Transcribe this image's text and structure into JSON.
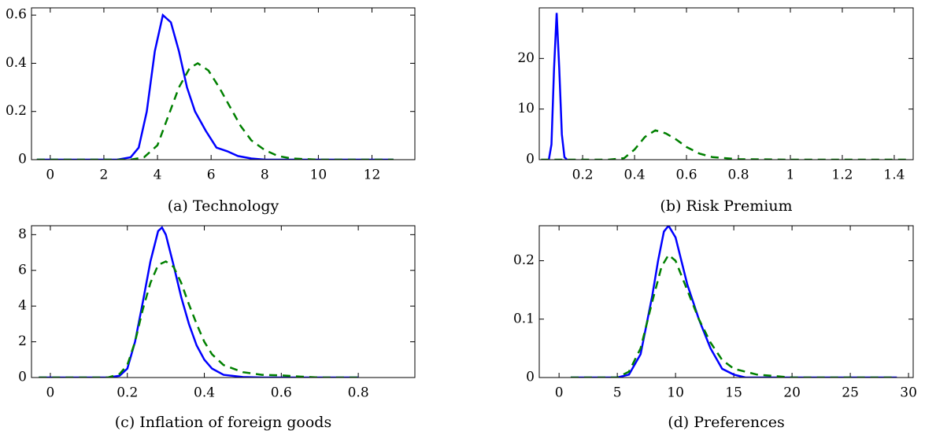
{
  "chart_data": [
    {
      "type": "line",
      "caption": "(a) Technology",
      "xlim": [
        -0.7,
        13.6
      ],
      "ylim": [
        0,
        0.63
      ],
      "xticks": [
        0,
        2,
        4,
        6,
        8,
        10,
        12
      ],
      "yticks": [
        0,
        0.2,
        0.4,
        0.6
      ],
      "series": [
        {
          "color": "#0000ff",
          "dashed": false,
          "x": [
            -0.5,
            2.5,
            3,
            3.3,
            3.6,
            3.9,
            4.2,
            4.5,
            4.8,
            5.1,
            5.4,
            5.8,
            6.2,
            6.6,
            7,
            7.5,
            8,
            12.8
          ],
          "values": [
            0,
            0,
            0.01,
            0.05,
            0.2,
            0.45,
            0.6,
            0.57,
            0.45,
            0.3,
            0.2,
            0.12,
            0.05,
            0.035,
            0.015,
            0.005,
            0,
            0
          ]
        },
        {
          "color": "#008000",
          "dashed": true,
          "x": [
            -0.5,
            3,
            3.5,
            4,
            4.4,
            4.8,
            5.2,
            5.5,
            5.9,
            6.3,
            6.7,
            7.1,
            7.5,
            8,
            8.5,
            9,
            10,
            12.8
          ],
          "values": [
            0,
            0,
            0.01,
            0.06,
            0.18,
            0.3,
            0.38,
            0.4,
            0.37,
            0.3,
            0.22,
            0.14,
            0.08,
            0.04,
            0.015,
            0.005,
            0,
            0
          ]
        }
      ]
    },
    {
      "type": "line",
      "caption": "(b) Risk Premium",
      "xlim": [
        0.033,
        1.473
      ],
      "ylim": [
        0,
        30
      ],
      "xticks": [
        0.2,
        0.4,
        0.6,
        0.8,
        1,
        1.2,
        1.4
      ],
      "yticks": [
        0,
        10,
        20
      ],
      "series": [
        {
          "color": "#0000ff",
          "dashed": false,
          "x": [
            0.07,
            0.08,
            0.09,
            0.1,
            0.11,
            0.12,
            0.13,
            0.14
          ],
          "values": [
            0,
            3,
            18,
            29,
            18,
            5,
            0.5,
            0
          ]
        },
        {
          "color": "#008000",
          "dashed": true,
          "x": [
            0.04,
            0.3,
            0.36,
            0.4,
            0.44,
            0.48,
            0.52,
            0.56,
            0.6,
            0.65,
            0.7,
            0.8,
            1,
            1.45
          ],
          "values": [
            0,
            0,
            0.3,
            2,
            4.5,
            5.8,
            5.2,
            4,
            2.5,
            1.2,
            0.5,
            0.1,
            0,
            0
          ]
        }
      ]
    },
    {
      "type": "line",
      "caption": "(c) Inflation of foreign goods",
      "xlim": [
        -0.049,
        0.947
      ],
      "ylim": [
        0,
        8.5
      ],
      "xticks": [
        0,
        0.2,
        0.4,
        0.6,
        0.8
      ],
      "yticks": [
        0,
        2,
        4,
        6,
        8
      ],
      "series": [
        {
          "color": "#0000ff",
          "dashed": false,
          "x": [
            -0.03,
            0.15,
            0.18,
            0.2,
            0.22,
            0.24,
            0.26,
            0.28,
            0.29,
            0.3,
            0.32,
            0.34,
            0.36,
            0.38,
            0.4,
            0.42,
            0.45,
            0.5,
            0.55,
            0.8
          ],
          "values": [
            0,
            0,
            0.1,
            0.5,
            2,
            4.2,
            6.5,
            8.2,
            8.4,
            8,
            6.3,
            4.5,
            3,
            1.8,
            1,
            0.5,
            0.15,
            0.03,
            0,
            0
          ]
        },
        {
          "color": "#008000",
          "dashed": true,
          "x": [
            -0.03,
            0.15,
            0.18,
            0.2,
            0.22,
            0.24,
            0.26,
            0.28,
            0.3,
            0.32,
            0.34,
            0.36,
            0.38,
            0.4,
            0.42,
            0.45,
            0.5,
            0.55,
            0.6,
            0.65,
            0.7,
            0.8
          ],
          "values": [
            0,
            0,
            0.2,
            0.7,
            2,
            3.8,
            5.3,
            6.3,
            6.5,
            6.2,
            5.3,
            4.1,
            3,
            2,
            1.3,
            0.7,
            0.3,
            0.15,
            0.12,
            0.05,
            0,
            0
          ]
        }
      ]
    },
    {
      "type": "line",
      "caption": "(d) Preferences",
      "xlim": [
        -1.7,
        30.4
      ],
      "ylim": [
        0,
        0.26
      ],
      "xticks": [
        0,
        5,
        10,
        15,
        20,
        25,
        30
      ],
      "yticks": [
        0,
        0.1,
        0.2
      ],
      "series": [
        {
          "color": "#0000ff",
          "dashed": false,
          "x": [
            1,
            5,
            6,
            7,
            8,
            8.5,
            9,
            9.4,
            10,
            11,
            12,
            13,
            14,
            15,
            16,
            29
          ],
          "values": [
            0,
            0,
            0.005,
            0.04,
            0.14,
            0.2,
            0.25,
            0.26,
            0.24,
            0.16,
            0.1,
            0.05,
            0.015,
            0.005,
            0,
            0
          ]
        },
        {
          "color": "#008000",
          "dashed": true,
          "x": [
            1,
            5,
            6,
            7,
            8,
            8.8,
            9.4,
            10,
            11,
            12,
            13,
            14,
            15,
            17,
            20,
            29
          ],
          "values": [
            0,
            0,
            0.01,
            0.05,
            0.13,
            0.19,
            0.21,
            0.2,
            0.15,
            0.1,
            0.06,
            0.03,
            0.015,
            0.005,
            0,
            0
          ]
        }
      ]
    }
  ]
}
